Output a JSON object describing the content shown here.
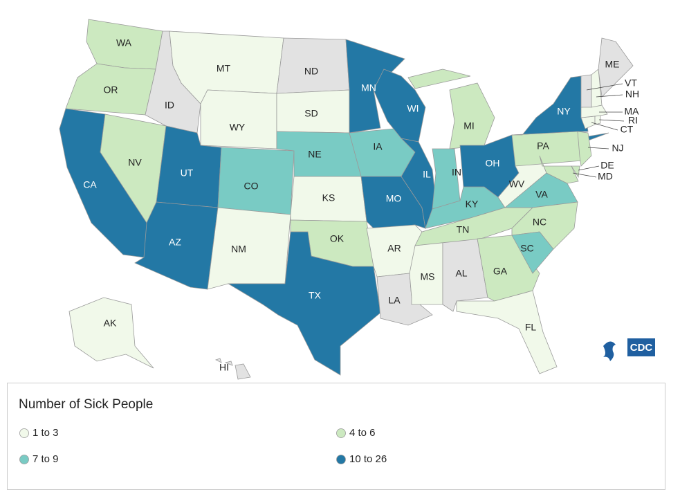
{
  "map": {
    "states": [
      {
        "label": "WA",
        "group": 1
      },
      {
        "label": "OR",
        "group": 1
      },
      {
        "label": "CA",
        "group": 3
      },
      {
        "label": "NV",
        "group": 1
      },
      {
        "label": "ID",
        "group": null
      },
      {
        "label": "MT",
        "group": 0
      },
      {
        "label": "WY",
        "group": 0
      },
      {
        "label": "UT",
        "group": 3
      },
      {
        "label": "AZ",
        "group": 3
      },
      {
        "label": "CO",
        "group": 2
      },
      {
        "label": "NM",
        "group": 0
      },
      {
        "label": "ND",
        "group": null
      },
      {
        "label": "SD",
        "group": 0
      },
      {
        "label": "NE",
        "group": 2
      },
      {
        "label": "KS",
        "group": 0
      },
      {
        "label": "OK",
        "group": 1
      },
      {
        "label": "TX",
        "group": 3
      },
      {
        "label": "MN",
        "group": 3
      },
      {
        "label": "IA",
        "group": 2
      },
      {
        "label": "MO",
        "group": 3
      },
      {
        "label": "AR",
        "group": 0
      },
      {
        "label": "LA",
        "group": null
      },
      {
        "label": "WI",
        "group": 3
      },
      {
        "label": "IL",
        "group": 3
      },
      {
        "label": "MS",
        "group": 0
      },
      {
        "label": "AL",
        "group": null
      },
      {
        "label": "MI",
        "group": 1
      },
      {
        "label": "IN",
        "group": 2
      },
      {
        "label": "KY",
        "group": 2
      },
      {
        "label": "TN",
        "group": 1
      },
      {
        "label": "GA",
        "group": 1
      },
      {
        "label": "FL",
        "group": 0
      },
      {
        "label": "OH",
        "group": 3
      },
      {
        "label": "WV",
        "group": 0
      },
      {
        "label": "VA",
        "group": 2
      },
      {
        "label": "NC",
        "group": 1
      },
      {
        "label": "SC",
        "group": 2
      },
      {
        "label": "PA",
        "group": 1
      },
      {
        "label": "NY",
        "group": 3
      },
      {
        "label": "NJ",
        "group": 1
      },
      {
        "label": "DE",
        "group": 1
      },
      {
        "label": "MD",
        "group": 1
      },
      {
        "label": "CT",
        "group": 0
      },
      {
        "label": "RI",
        "group": 0
      },
      {
        "label": "MA",
        "group": 0
      },
      {
        "label": "VT",
        "group": null
      },
      {
        "label": "NH",
        "group": 0
      },
      {
        "label": "ME",
        "group": null
      },
      {
        "label": "AK",
        "group": 0
      },
      {
        "label": "HI",
        "group": null
      }
    ],
    "no_data_color": "#e2e2e2"
  },
  "legend": {
    "title": "Number of Sick People",
    "items": [
      {
        "label": "1 to 3",
        "color": "#f1f9ea"
      },
      {
        "label": "4 to 6",
        "color": "#cce9c0"
      },
      {
        "label": "7 to 9",
        "color": "#79cbc4"
      },
      {
        "label": "10 to 26",
        "color": "#2378a5"
      }
    ]
  },
  "logo": "CDC"
}
